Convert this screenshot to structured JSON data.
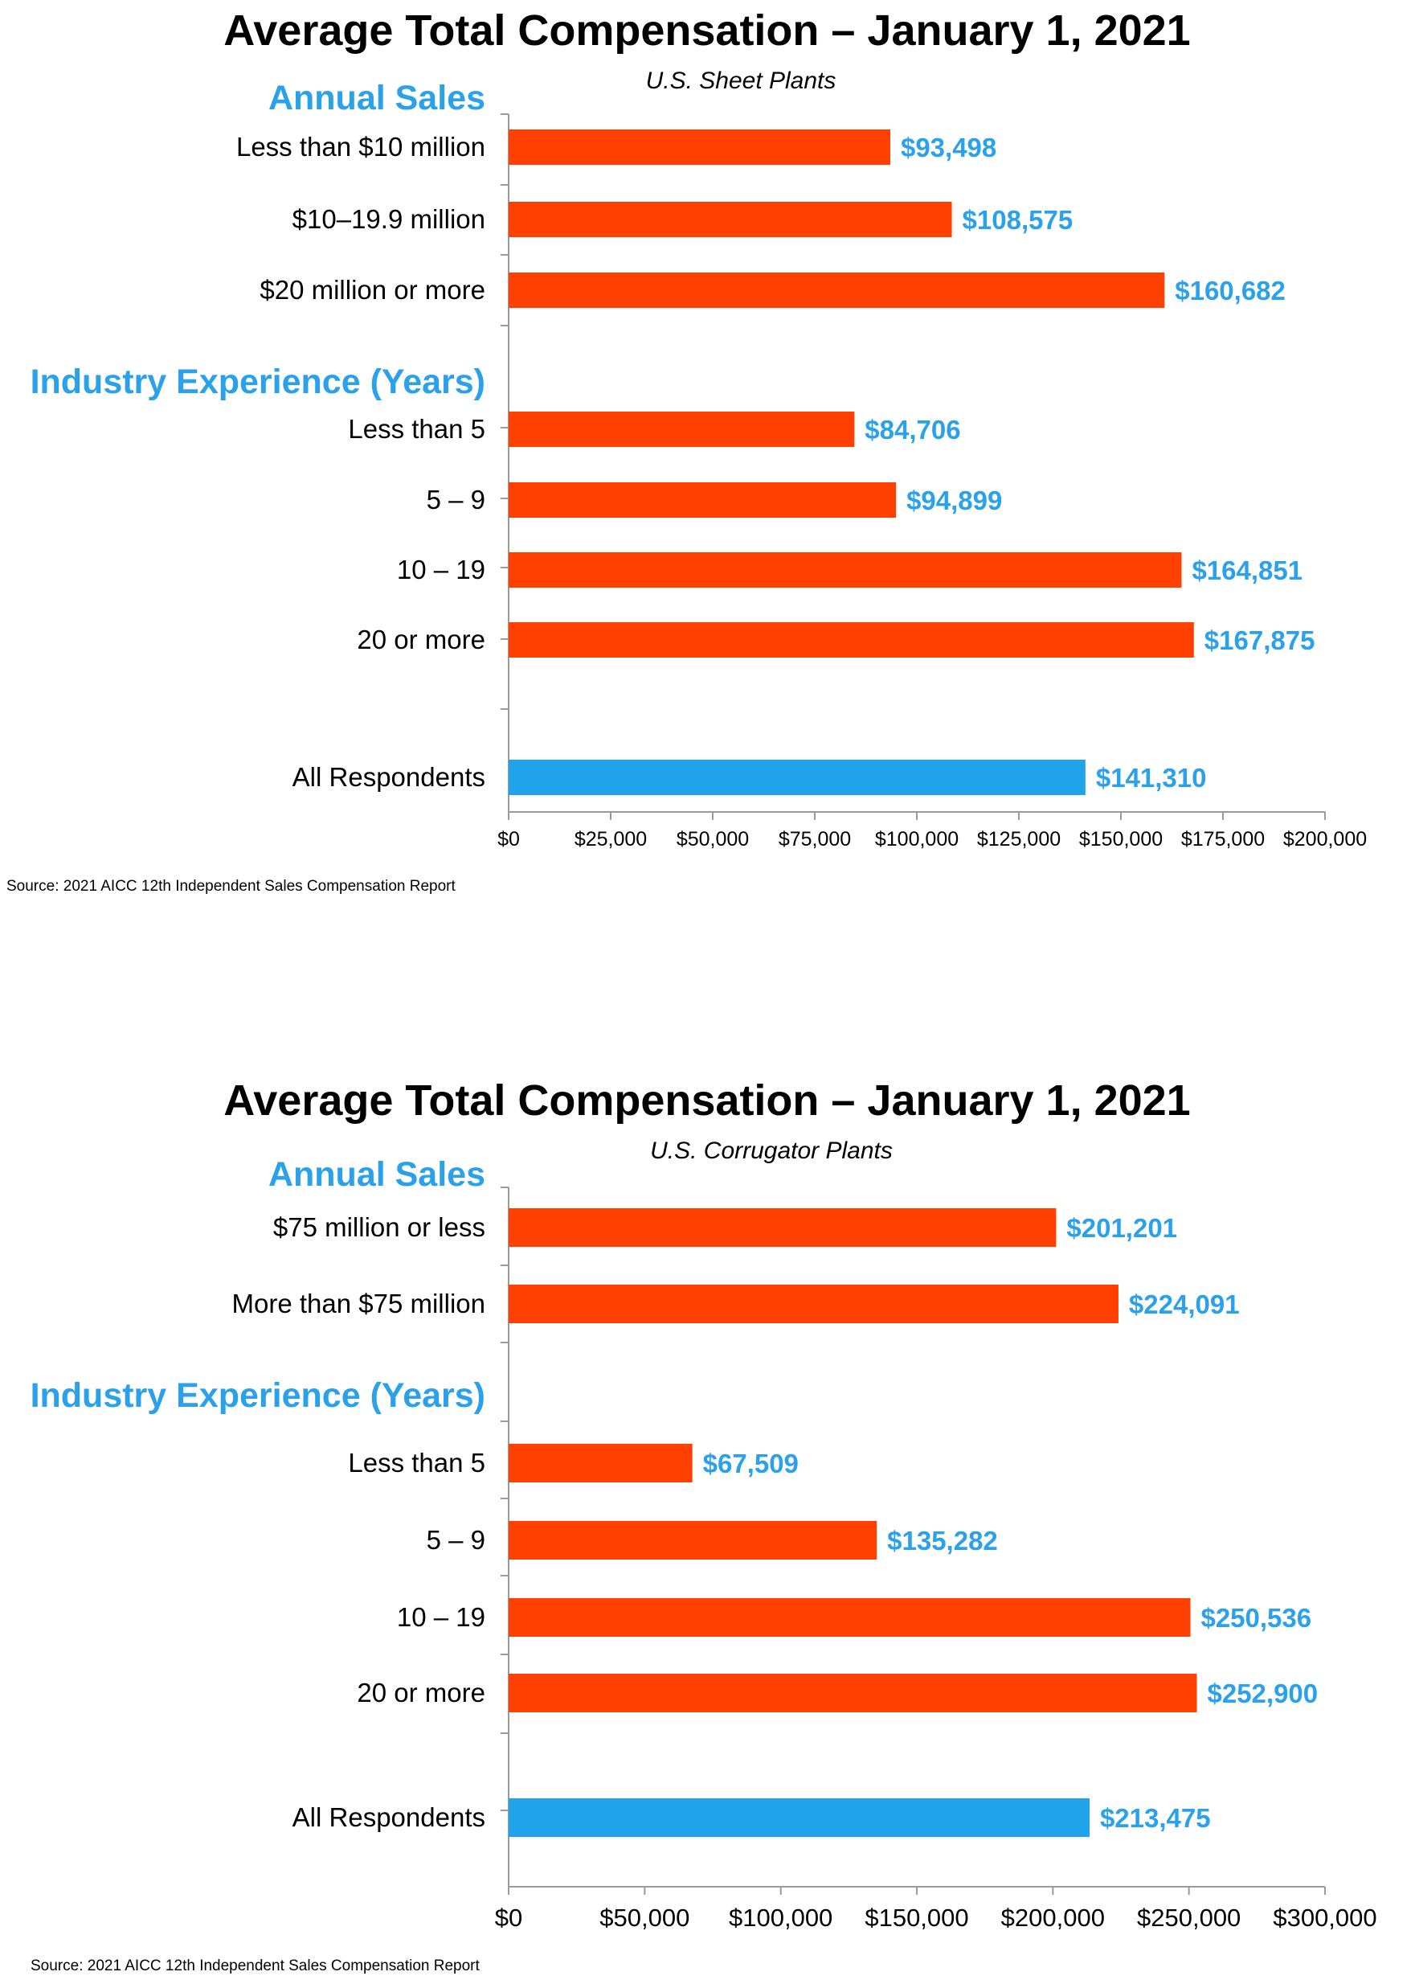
{
  "chart_data": [
    {
      "type": "bar",
      "orientation": "horizontal",
      "title": "Average Total Compensation – January 1, 2021",
      "subtitle": "U.S. Sheet Plants",
      "groups": [
        {
          "header": "Annual Sales",
          "categories": [
            "Less than $10 million",
            "$10–19.9 million",
            "$20 million or more"
          ],
          "values": [
            93498,
            108575,
            160682
          ],
          "value_labels": [
            "$93,498",
            "$108,575",
            "$160,682"
          ]
        },
        {
          "header": "Industry Experience (Years)",
          "categories": [
            "Less than 5",
            "5 – 9",
            "10 – 19",
            "20 or more"
          ],
          "values": [
            84706,
            94899,
            164851,
            167875
          ],
          "value_labels": [
            "$84,706",
            "$94,899",
            "$164,851",
            "$167,875"
          ]
        }
      ],
      "total": {
        "category": "All Respondents",
        "value": 141310,
        "value_label": "$141,310"
      },
      "xlim": [
        0,
        200000
      ],
      "x_ticks": [
        0,
        25000,
        50000,
        75000,
        100000,
        125000,
        150000,
        175000,
        200000
      ],
      "x_tick_labels": [
        "$0",
        "$25,000",
        "$50,000",
        "$75,000",
        "$100,000",
        "$125,000",
        "$150,000",
        "$175,000",
        "$200,000"
      ],
      "grid": false,
      "legend": "none",
      "source": "Source: 2021 AICC 12th Independent Sales Compensation Report"
    },
    {
      "type": "bar",
      "orientation": "horizontal",
      "title": "Average Total Compensation – January 1, 2021",
      "subtitle": "U.S. Corrugator Plants",
      "groups": [
        {
          "header": "Annual Sales",
          "categories": [
            "$75 million or less",
            "More than $75 million"
          ],
          "values": [
            201201,
            224091
          ],
          "value_labels": [
            "$201,201",
            "$224,091"
          ]
        },
        {
          "header": "Industry Experience (Years)",
          "categories": [
            "Less than 5",
            "5 – 9",
            "10 – 19",
            "20 or more"
          ],
          "values": [
            67509,
            135282,
            250536,
            252900
          ],
          "value_labels": [
            "$67,509",
            "$135,282",
            "$250,536",
            "$252,900"
          ]
        }
      ],
      "total": {
        "category": "All Respondents",
        "value": 213475,
        "value_label": "$213,475"
      },
      "xlim": [
        0,
        300000
      ],
      "x_ticks": [
        0,
        50000,
        100000,
        150000,
        200000,
        250000,
        300000
      ],
      "x_tick_labels": [
        "$0",
        "$50,000",
        "$100,000",
        "$150,000",
        "$200,000",
        "$250,000",
        "$300,000"
      ],
      "grid": false,
      "legend": "none",
      "source": "Source: 2021 AICC 12th Independent Sales Compensation Report"
    }
  ],
  "colors": {
    "bar": "#ff4000",
    "total_bar": "#21a3ec",
    "accent_text": "#2aa1e8",
    "axis": "#9a9a9a"
  }
}
